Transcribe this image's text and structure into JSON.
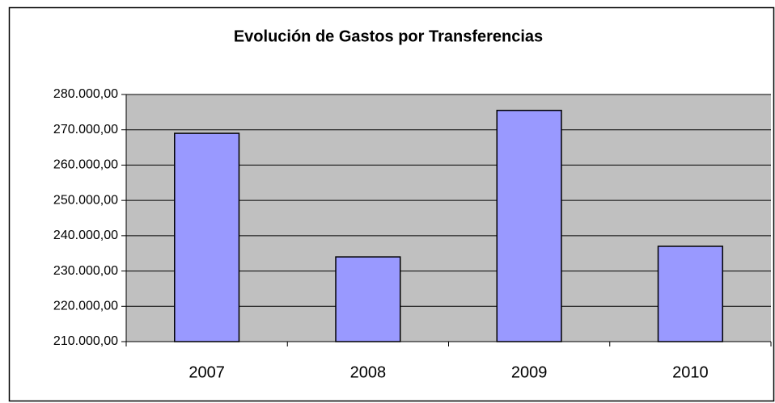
{
  "chart_data": {
    "type": "bar",
    "title": "Evolución de Gastos por Transferencias",
    "categories": [
      "2007",
      "2008",
      "2009",
      "2010"
    ],
    "values": [
      269000,
      234000,
      275500,
      237000
    ],
    "color": "#9999ff",
    "ylim": [
      210000,
      280000
    ],
    "yticks": [
      {
        "value": 210000,
        "label": "210.000,00"
      },
      {
        "value": 220000,
        "label": "220.000,00"
      },
      {
        "value": 230000,
        "label": "230.000,00"
      },
      {
        "value": 240000,
        "label": "240.000,00"
      },
      {
        "value": 250000,
        "label": "250.000,00"
      },
      {
        "value": 260000,
        "label": "260.000,00"
      },
      {
        "value": 270000,
        "label": "270.000,00"
      },
      {
        "value": 280000,
        "label": "280.000,00"
      }
    ],
    "grid": true
  }
}
